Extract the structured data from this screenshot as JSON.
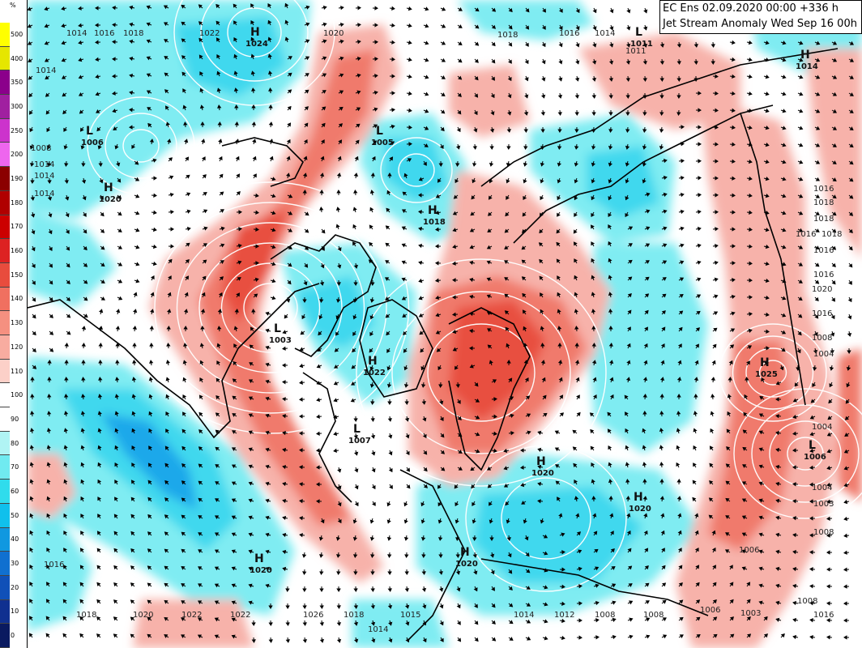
{
  "title": {
    "line1": "EC Ens 02.09.2020 00:00 +336 h",
    "line2": "Jet Stream Anomaly Wed Sep 16 00h"
  },
  "colorbar": {
    "unit": "%",
    "levels": [
      {
        "label": "500",
        "color": "#ffff00"
      },
      {
        "label": "400",
        "color": "#e6e600"
      },
      {
        "label": "350",
        "color": "#8b008b"
      },
      {
        "label": "300",
        "color": "#a020a0"
      },
      {
        "label": "250",
        "color": "#cc33cc"
      },
      {
        "label": "200",
        "color": "#ee66ee"
      },
      {
        "label": "190",
        "color": "#8b0000"
      },
      {
        "label": "180",
        "color": "#b00000"
      },
      {
        "label": "170",
        "color": "#cc0000"
      },
      {
        "label": "160",
        "color": "#dd2222"
      },
      {
        "label": "150",
        "color": "#e84c3d"
      },
      {
        "label": "140",
        "color": "#f07060"
      },
      {
        "label": "130",
        "color": "#f59080"
      },
      {
        "label": "120",
        "color": "#f8aca0"
      },
      {
        "label": "110",
        "color": "#fcd0c8"
      },
      {
        "label": "100",
        "color": "#ffffff"
      },
      {
        "label": "90",
        "color": "#ffffff"
      },
      {
        "label": "80",
        "color": "#b0f4f4"
      },
      {
        "label": "70",
        "color": "#70eaf0"
      },
      {
        "label": "60",
        "color": "#30dcec"
      },
      {
        "label": "50",
        "color": "#10c0ec"
      },
      {
        "label": "40",
        "color": "#1098e0"
      },
      {
        "label": "30",
        "color": "#1070d0"
      },
      {
        "label": "20",
        "color": "#1050b8"
      },
      {
        "label": "10",
        "color": "#103090"
      },
      {
        "label": "0",
        "color": "#0a1a60"
      }
    ]
  },
  "colors": {
    "warm_light": "#f7b2aa",
    "warm_mid": "#f07a6c",
    "warm_strong": "#e85040",
    "cool_light": "#7fecf2",
    "cool_mid": "#3fd8ee",
    "cool_strong": "#1aa8ea",
    "isobar": "#ffffff",
    "arrow": "#000000"
  },
  "pressure_centers": [
    {
      "type": "H",
      "value": "1024"
    },
    {
      "type": "L",
      "value": "1006"
    },
    {
      "type": "H",
      "value": "1020"
    },
    {
      "type": "H",
      "value": "1018"
    },
    {
      "type": "L",
      "value": "1005"
    },
    {
      "type": "H",
      "value": "1022"
    },
    {
      "type": "L",
      "value": "1007"
    },
    {
      "type": "L",
      "value": "1003"
    },
    {
      "type": "H",
      "value": "1020"
    },
    {
      "type": "H",
      "value": "1020"
    },
    {
      "type": "H",
      "value": "1020"
    },
    {
      "type": "H",
      "value": "1025"
    },
    {
      "type": "L",
      "value": "1006"
    },
    {
      "type": "H",
      "value": "1014"
    },
    {
      "type": "H",
      "value": "1020"
    },
    {
      "type": "L",
      "value": "1011"
    }
  ],
  "isobar_labels": [
    "1014",
    "1016",
    "1018",
    "1022",
    "1020",
    "1018",
    "1016",
    "1014",
    "1011",
    "1014",
    "1008",
    "1014",
    "1014",
    "1014",
    "1016",
    "1018",
    "1018",
    "1016",
    "1018",
    "1016",
    "1016",
    "1020",
    "1016",
    "1008",
    "1004",
    "1004",
    "1004",
    "1003",
    "1008",
    "1006",
    "1006",
    "1008",
    "1016",
    "1018",
    "1020",
    "1022",
    "1022",
    "1026",
    "1018",
    "1015",
    "1014",
    "1012",
    "1008",
    "1008",
    "1014",
    "1003",
    "1016"
  ]
}
